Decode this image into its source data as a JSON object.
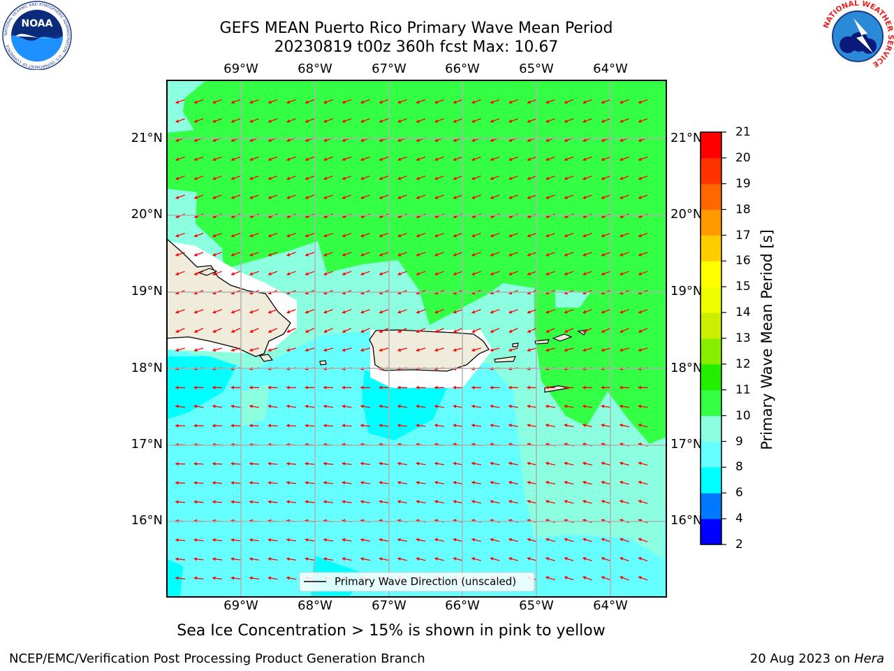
{
  "title": {
    "line1": "GEFS MEAN Puerto Rico Primary Wave Mean Period",
    "line2": "20230819 t00z 360h fcst   Max: 10.67"
  },
  "logos": {
    "noaa": "NOAA",
    "noaa_ring": "NATIONAL OCEANIC AND ATMOSPHERIC ADMINISTRATION · U.S. DEPARTMENT OF COMMERCE",
    "nws_ring": "NATIONAL WEATHER SERVICE"
  },
  "map": {
    "lon_labels": [
      "69°W",
      "68°W",
      "67°W",
      "66°W",
      "65°W",
      "64°W"
    ],
    "lat_labels": [
      "21°N",
      "20°N",
      "19°N",
      "18°N",
      "17°N",
      "16°N"
    ],
    "legend_label": "Primary Wave Direction (unscaled)",
    "arrow_color": "#ff0000",
    "land_color": "#f0ecdc",
    "region_colors": {
      "period_6_8": "#00ffff",
      "period_8_9": "#66ffff",
      "period_9_10": "#8cffe0",
      "period_10_11": "#33ff44"
    }
  },
  "colorbar": {
    "label": "Primary Wave Mean Period [s]",
    "ticks": [
      "2",
      "4",
      "6",
      "8",
      "9",
      "10",
      "11",
      "12",
      "13",
      "14",
      "15",
      "16",
      "17",
      "18",
      "19",
      "20",
      "21"
    ],
    "colors": [
      "#0000ff",
      "#0078ff",
      "#00ffff",
      "#66ffff",
      "#8cffe0",
      "#33ff44",
      "#22ee00",
      "#88ee00",
      "#ccee00",
      "#eeff00",
      "#ffff00",
      "#ffcc00",
      "#ff9900",
      "#ff6600",
      "#ff3300",
      "#ff0000"
    ]
  },
  "caption": "Sea Ice Concentration > 15% is shown in pink to yellow",
  "footer": {
    "left": "NCEP/EMC/Verification Post Processing Product Generation Branch",
    "right_prefix": "20 Aug 2023 on ",
    "right_machine": "Hera"
  }
}
